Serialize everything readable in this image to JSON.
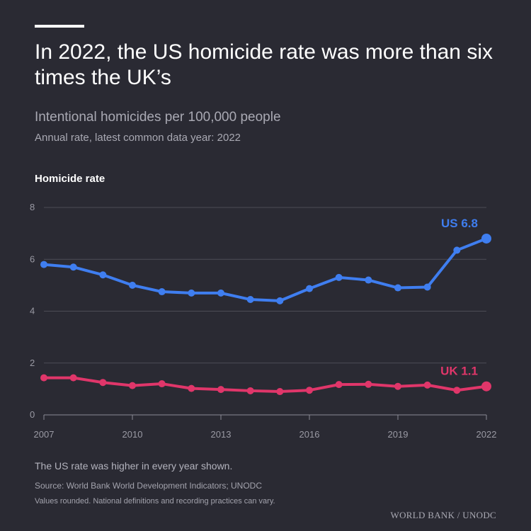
{
  "header": {
    "title": "In 2022, the US homicide rate was more than six times the UK’s",
    "subtitle": "Intentional homicides per 100,000 people",
    "subsubtitle": "Annual rate, latest common data year: 2022"
  },
  "footer": {
    "note": "The US rate was higher in every year shown.",
    "source": "Source: World Bank World Development Indicators; UNODC",
    "caveat": "Values rounded. National definitions and recording practices can vary.",
    "wordmark": "WORLD BANK / UNODC"
  },
  "chart_data": {
    "type": "line",
    "ylabel": "Homicide rate",
    "ylim": [
      0,
      8
    ],
    "xlim": [
      2007,
      2022
    ],
    "yticks": [
      0,
      2,
      4,
      6,
      8
    ],
    "xticks": [
      2007,
      2010,
      2013,
      2016,
      2019,
      2022
    ],
    "grid": true,
    "x": [
      2007,
      2008,
      2009,
      2010,
      2011,
      2012,
      2013,
      2014,
      2015,
      2016,
      2017,
      2018,
      2019,
      2020,
      2021,
      2022
    ],
    "series": [
      {
        "name": "US",
        "color": "#3f7ef0",
        "end_label": "US 6.8",
        "values": [
          5.8,
          5.7,
          5.4,
          5.0,
          4.75,
          4.7,
          4.7,
          4.45,
          4.4,
          4.87,
          5.3,
          5.2,
          4.9,
          4.93,
          6.35,
          6.8
        ]
      },
      {
        "name": "UK",
        "color": "#e0366a",
        "end_label": "UK 1.1",
        "values": [
          1.43,
          1.43,
          1.25,
          1.13,
          1.2,
          1.02,
          0.98,
          0.93,
          0.9,
          0.95,
          1.17,
          1.18,
          1.1,
          1.15,
          0.95,
          1.1
        ]
      }
    ]
  }
}
